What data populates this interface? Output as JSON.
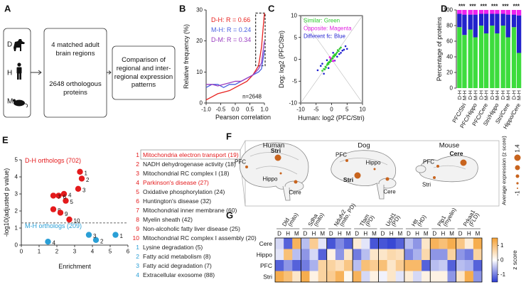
{
  "diagram": {
    "label": "A",
    "species": [
      "D",
      "H",
      "M"
    ],
    "boxes": [
      "4 matched adult brain regions",
      "2648 orthologous proteins",
      "Comparison of regional and inter-regional expression patterns"
    ]
  },
  "brain_map": {
    "label": "F",
    "species": [
      {
        "name": "Human",
        "regions": [
          "PFC",
          "Stri",
          "Hippo",
          "Cere"
        ]
      },
      {
        "name": "Dog",
        "regions": [
          "PFC",
          "Hippo",
          "Stri",
          "Cere"
        ]
      },
      {
        "name": "Mouse",
        "regions": [
          "PFC",
          "Cere",
          "Stri"
        ]
      }
    ],
    "size_legend": {
      "title": "Average expression (z score)",
      "max_label": "1.4",
      "min_label": "-1"
    }
  },
  "chart_data": [
    {
      "type": "line",
      "label": "B",
      "x_label": "Pearson correlation",
      "y_label": "Relative frequency (%)",
      "annotation": "n=2648",
      "x": [
        -1,
        -0.8,
        -0.6,
        -0.4,
        -0.2,
        0,
        0.2,
        0.4,
        0.6,
        0.8,
        0.9,
        1
      ],
      "series": [
        {
          "name": "D-H: R = 0.66",
          "color": "#e8221f",
          "values": [
            1,
            2,
            3,
            3.5,
            4,
            5,
            6,
            7,
            9,
            12,
            18,
            29
          ]
        },
        {
          "name": "M-H: R = 0.24",
          "color": "#4a5fe0",
          "values": [
            5,
            6,
            6,
            5,
            6,
            6,
            7,
            8,
            9,
            10,
            11,
            17
          ]
        },
        {
          "name": "D-M: R = 0.34",
          "color": "#9b3fc0",
          "values": [
            6,
            6,
            5.5,
            6,
            6.5,
            7,
            7,
            8,
            9,
            11,
            13,
            20
          ]
        }
      ],
      "xlim": [
        -1,
        1
      ],
      "xticks": [
        {
          "value": -1,
          "label": "-1.0"
        },
        -0.5,
        {
          "value": 0,
          "label": "0.0"
        },
        0.5,
        {
          "value": 1,
          "label": "1.0"
        }
      ],
      "ylim": [
        0,
        30
      ],
      "yticks": [
        0,
        10,
        20,
        30
      ]
    },
    {
      "type": "scatter",
      "label": "C",
      "x_label": "Human: log2 (PFC/Stri)",
      "y_label": "Dog: log2 (PFC/Stri)",
      "series": [
        {
          "name": "Different fc: Blue",
          "color": "#1f1fd0",
          "x": [
            -4.5,
            -3.5,
            -3,
            -2.5,
            -1.5,
            -1,
            0.5,
            1,
            1.8,
            2.5,
            3,
            3.5,
            4,
            4.5,
            5
          ],
          "values": [
            -2.5,
            -1.5,
            -1,
            -3.3,
            -0.2,
            -2,
            1.5,
            -0.3,
            0.6,
            1.2,
            1.5,
            2,
            2.2,
            3,
            2.4
          ]
        },
        {
          "name": "Similar: Green",
          "color": "#2ecc2e",
          "x": [
            -3,
            -2.5,
            -2.2,
            -2,
            -1.8,
            -1.5,
            -1.3,
            -1,
            -0.8,
            -0.6,
            -0.4,
            -0.2,
            0,
            0.2,
            0.4,
            0.6,
            0.8,
            1,
            1.2,
            1.5,
            1.8,
            2,
            2.3,
            2.6,
            3,
            -1.1,
            0.5,
            1.4,
            -0.3,
            0.9
          ],
          "values": [
            -2.6,
            -2.2,
            -2.3,
            -1.7,
            -1.9,
            -1.3,
            -1,
            -1.1,
            -0.6,
            -0.7,
            -0.2,
            -0.4,
            0.1,
            0.3,
            0.2,
            0.7,
            0.6,
            1.1,
            0.9,
            1.3,
            1.6,
            2.1,
            1.9,
            2.4,
            2.7,
            -0.8,
            0.7,
            1.2,
            0,
            1
          ]
        },
        {
          "name": "Opposite: Magenta",
          "color": "#e020e0",
          "x": [
            -0.6,
            0.4,
            0.8,
            -0.3
          ],
          "values": [
            0.5,
            -0.4,
            -0.3,
            0.2
          ]
        }
      ],
      "legend_order": [
        1,
        2,
        0
      ],
      "xlim": [
        -10,
        10
      ],
      "xticks": [
        -10,
        -5,
        0,
        5,
        10
      ],
      "ylim": [
        -10,
        10
      ],
      "yticks": [
        -10,
        -5,
        0,
        5,
        10
      ]
    },
    {
      "type": "bar",
      "label": "D",
      "y_label": "Percentage of proteins",
      "categories": [
        "D-H",
        "M-H",
        "D-H",
        "M-H",
        "D-H",
        "M-H",
        "D-H",
        "M-H",
        "D-H",
        "M-H",
        "D-H",
        "M-H"
      ],
      "groups": [
        "PFC/Stri",
        "PFC/Hippo",
        "PFC/Cere",
        "Stri/Hippo",
        "Stri/Cere",
        "Hippo/Cere"
      ],
      "significance": [
        "***",
        "***",
        "***",
        "***",
        "***",
        "***"
      ],
      "stacked": true,
      "series": [
        {
          "color": "#3ddc3d",
          "values": [
            78,
            68,
            75,
            65,
            80,
            70,
            80,
            70,
            80,
            65,
            78,
            45
          ]
        },
        {
          "color": "#2222cc",
          "values": [
            17,
            26,
            19,
            29,
            15,
            25,
            15,
            25,
            15,
            29,
            16,
            48
          ]
        },
        {
          "color": "#ee22ee",
          "values": [
            5,
            6,
            6,
            6,
            5,
            5,
            5,
            5,
            5,
            6,
            6,
            7
          ]
        }
      ],
      "ylim": [
        0,
        100
      ],
      "yticks": [
        0,
        20,
        40,
        60,
        80,
        100
      ]
    },
    {
      "type": "scatter",
      "label": "E",
      "x_label": "Enrichment",
      "y_label": "-log10(adjusted p value)",
      "reference_line": 1.3,
      "series": [
        {
          "name": "D-H orthologs (702)",
          "color": "#e41a1c",
          "x": [
            3.3,
            3.4,
            3.2,
            2.4,
            2.5,
            2.1,
            1.8,
            1.8,
            2.2,
            2.7
          ],
          "values": [
            4.3,
            3.9,
            3.3,
            3,
            2.6,
            2.9,
            2.9,
            2.1,
            1.9,
            1.5
          ],
          "point_labels": [
            "1",
            "2",
            "3",
            "4",
            "5",
            "6",
            "7",
            "8",
            "9",
            "10"
          ],
          "terms": [
            {
              "text": "Mitochondria electron transport (19)",
              "color": "#e41a1c"
            },
            {
              "text": "NADH dehydrogenase activity (18)",
              "color": "#222222"
            },
            {
              "text": "Mitochondrial RC complex I (18)",
              "color": "#222222"
            },
            {
              "text": "Parkinson's disease (27)",
              "color": "#e41a1c"
            },
            {
              "text": "Oxidative phosphorylation (24)",
              "color": "#222222"
            },
            {
              "text": "Huntington's disease (32)",
              "color": "#222222"
            },
            {
              "text": "Mitochondrial inner membrane (60)",
              "color": "#222222"
            },
            {
              "text": "Myelin sheath (42)",
              "color": "#222222"
            },
            {
              "text": "Non-alcoholic fatty liver disease (25)",
              "color": "#222222"
            },
            {
              "text": "Mitochondrial RC complex I assembly (20)",
              "color": "#222222"
            }
          ]
        },
        {
          "name": "M-H orthologs (209)",
          "color": "#2a9fd6",
          "x": [
            5.3,
            4.2,
            3.8,
            1.5
          ],
          "values": [
            0.6,
            0.3,
            0.6,
            0.2
          ],
          "point_labels": [
            "1",
            "2",
            "3",
            "4"
          ],
          "terms": [
            {
              "text": "Lysine degradation (5)",
              "color": "#222222"
            },
            {
              "text": "Fatty acid metabolism (8)",
              "color": "#222222"
            },
            {
              "text": "Fatty acid degradation (7)",
              "color": "#222222"
            },
            {
              "text": "Extracellular exosome (88)",
              "color": "#222222"
            }
          ]
        }
      ],
      "xlim": [
        0,
        6
      ],
      "xticks": [
        0,
        1,
        2,
        3,
        4,
        5,
        6
      ],
      "ylim": [
        0,
        5
      ],
      "yticks": [
        0,
        1,
        2,
        3,
        4,
        5
      ]
    },
    {
      "type": "heatmap",
      "label": "G",
      "genes": [
        {
          "name": "Dld",
          "note": "(mito)"
        },
        {
          "name": "Sdha",
          "note": "(mito)"
        },
        {
          "name": "Ndufv2",
          "note": "(mito, PD)"
        },
        {
          "name": "Tfam",
          "note": "(PD)"
        },
        {
          "name": "Uchl1",
          "note": "(PD)"
        },
        {
          "name": "Htt",
          "note": "(HD)"
        },
        {
          "name": "Plp1",
          "note": "(myelin)"
        },
        {
          "name": "Prkaa1",
          "note": "(FLD)"
        }
      ],
      "columns": [
        "D",
        "H",
        "M"
      ],
      "rows": [
        "Cere",
        "Hippo",
        "PFC",
        "Stri"
      ],
      "values": [
        [
          -0.3,
          -1.2,
          1.2,
          -0.5,
          0.8,
          -0.2,
          -1.3,
          -0.9,
          -1.2,
          0.3,
          -0.2,
          -1.3,
          -1.3,
          -1.4,
          -1.2,
          -0.5,
          -0.8,
          0.4,
          1.2,
          1.0,
          1.3,
          0.9,
          0.3,
          1.3
        ],
        [
          -0.2,
          1.0,
          -0.5,
          -0.8,
          -0.3,
          -1.2,
          0.2,
          -0.8,
          0.4,
          -1.0,
          -0.5,
          0.4,
          0.4,
          0.6,
          0.5,
          -0.9,
          -0.6,
          0.6,
          -0.8,
          -0.8,
          0.7,
          -0.8,
          -1.0,
          0.7
        ],
        [
          -1.2,
          -0.8,
          -1.2,
          -1.0,
          -0.6,
          0.7,
          0.7,
          0.5,
          0.9,
          -0.5,
          1.0,
          0.8,
          1.0,
          0.4,
          0.8,
          1.1,
          1.1,
          -1.2,
          -0.5,
          -0.4,
          -1.2,
          -0.5,
          -0.6,
          -1.2
        ],
        [
          1.3,
          1.0,
          0.4,
          1.3,
          0.2,
          0.7,
          0.8,
          1.2,
          0.1,
          1.2,
          -0.3,
          0.2,
          -0.1,
          0.4,
          -0.2,
          0.3,
          -0.3,
          0.2,
          0.2,
          0.2,
          -0.8,
          0.4,
          1.3,
          -0.8
        ]
      ],
      "colors": [
        "#2b3bd1",
        "#ffffff",
        "#f5a033"
      ],
      "zlim": [
        -1.5,
        1.5
      ],
      "zticks": [
        1,
        0,
        -1
      ],
      "colorbar_label": "z score"
    }
  ]
}
